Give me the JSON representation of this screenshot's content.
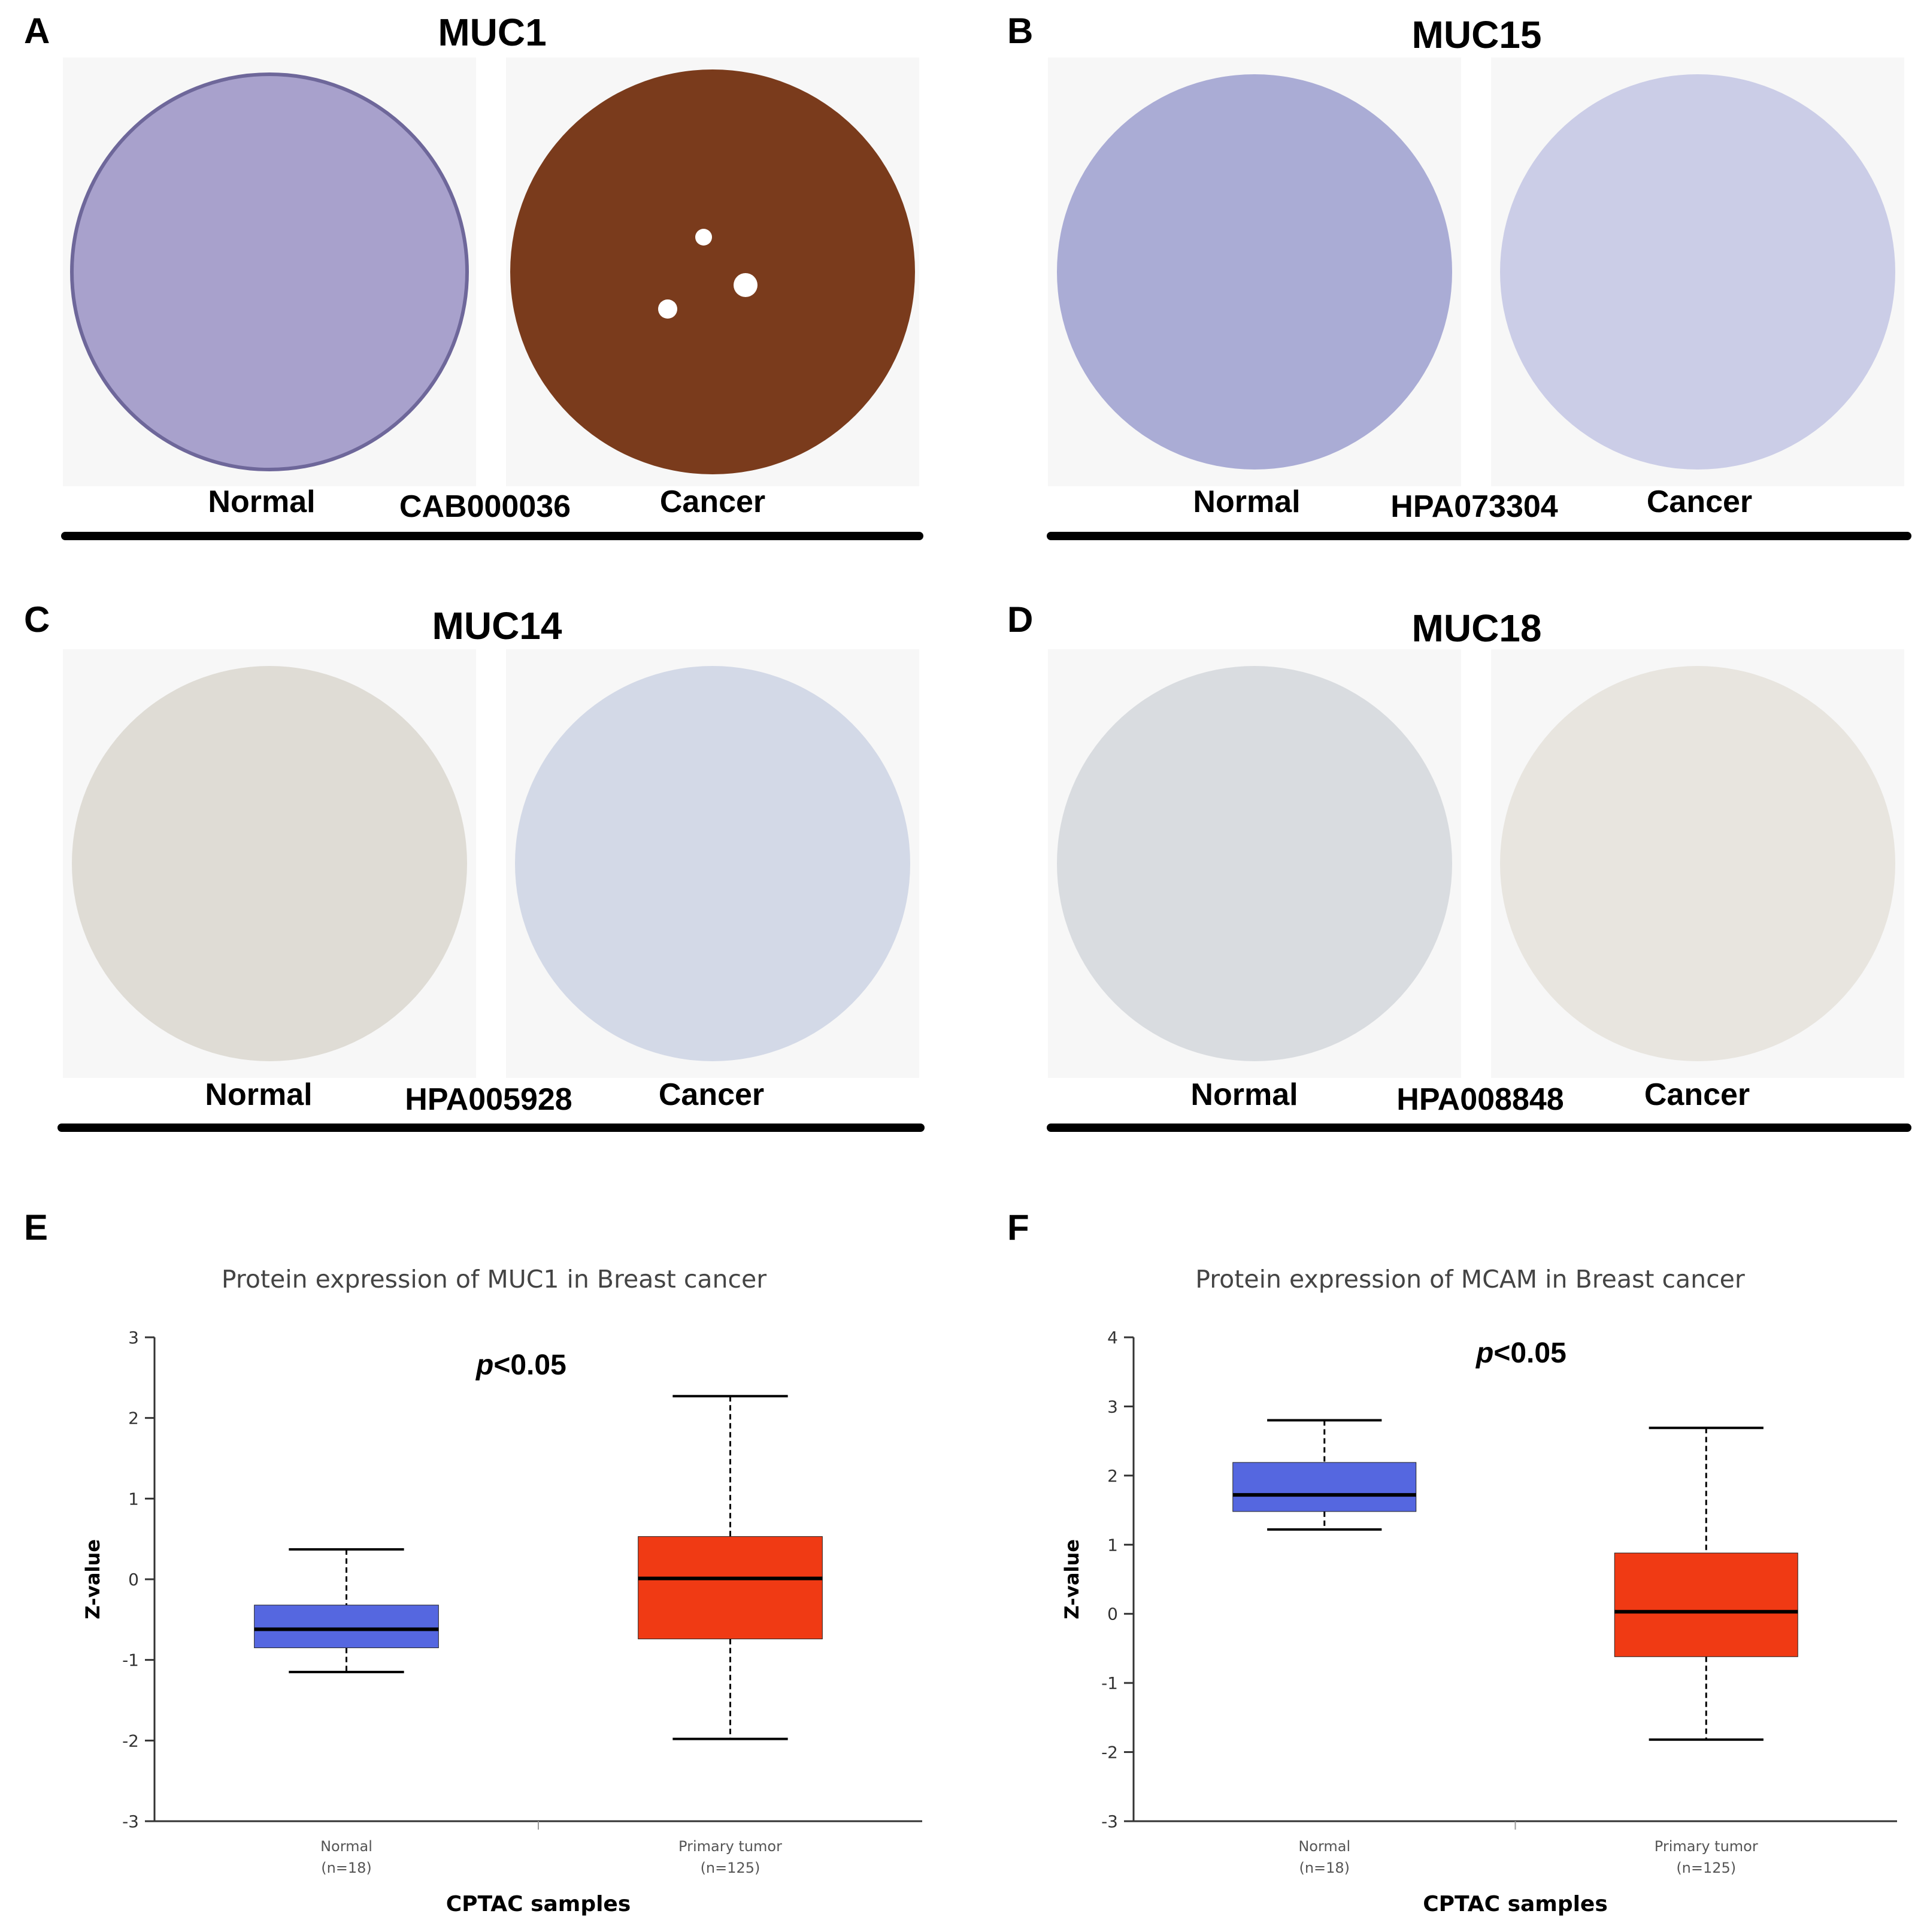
{
  "figure": {
    "panels_ihc": [
      {
        "letter": "A",
        "title": "MUC1",
        "normal_label": "Normal",
        "antibody": "CAB000036",
        "cancer_label": "Cancer",
        "normal_stain": "#9a92c4",
        "cancer_stain": "#7a3b1c"
      },
      {
        "letter": "B",
        "title": "MUC15",
        "normal_label": "Normal",
        "antibody": "HPA073304",
        "cancer_label": "Cancer",
        "normal_stain": "#9c9fcf",
        "cancer_stain": "#b8bbe0"
      },
      {
        "letter": "C",
        "title": "MUC14",
        "normal_label": "Normal",
        "antibody": "HPA005928",
        "cancer_label": "Cancer",
        "normal_stain": "#d8d4cc",
        "cancer_stain": "#c9d1e2"
      },
      {
        "letter": "D",
        "title": "MUC18",
        "normal_label": "Normal",
        "antibody": "HPA008848",
        "cancer_label": "Cancer",
        "normal_stain": "#d3d7dc",
        "cancer_stain": "#e5e2dc"
      }
    ],
    "panels_box": [
      {
        "letter": "E",
        "p_prefix": "p",
        "p_rest": "<0.05"
      },
      {
        "letter": "F",
        "p_prefix": "p",
        "p_rest": "<0.05"
      }
    ]
  },
  "chart_data": [
    {
      "type": "box",
      "title": "Protein expression of MUC1 in Breast cancer",
      "xlabel": "CPTAC samples",
      "ylabel": "Z-value",
      "ylim": [
        -3,
        3
      ],
      "yticks": [
        "3",
        "2",
        "1",
        "0",
        "-1",
        "-2",
        "-3"
      ],
      "categories": [
        {
          "name": "Normal",
          "n": "(n=18)",
          "color": "#5567e0",
          "min": -1.15,
          "q1": -0.85,
          "median": -0.62,
          "q3": -0.32,
          "max": 0.37
        },
        {
          "name": "Primary tumor",
          "n": "(n=125)",
          "color": "#f03a14",
          "min": -1.98,
          "q1": -0.74,
          "median": 0.01,
          "q3": 0.53,
          "max": 2.27
        }
      ]
    },
    {
      "type": "box",
      "title": "Protein expression of MCAM in Breast cancer",
      "xlabel": "CPTAC samples",
      "ylabel": "Z-value",
      "ylim": [
        -3,
        4
      ],
      "yticks": [
        "4",
        "3",
        "2",
        "1",
        "0",
        "-1",
        "-2",
        "-3"
      ],
      "categories": [
        {
          "name": "Normal",
          "n": "(n=18)",
          "color": "#5567e0",
          "min": 1.22,
          "q1": 1.48,
          "median": 1.72,
          "q3": 2.19,
          "max": 2.8
        },
        {
          "name": "Primary tumor",
          "n": "(n=125)",
          "color": "#f03a14",
          "min": -1.82,
          "q1": -0.62,
          "median": 0.03,
          "q3": 0.88,
          "max": 2.69
        }
      ]
    }
  ]
}
